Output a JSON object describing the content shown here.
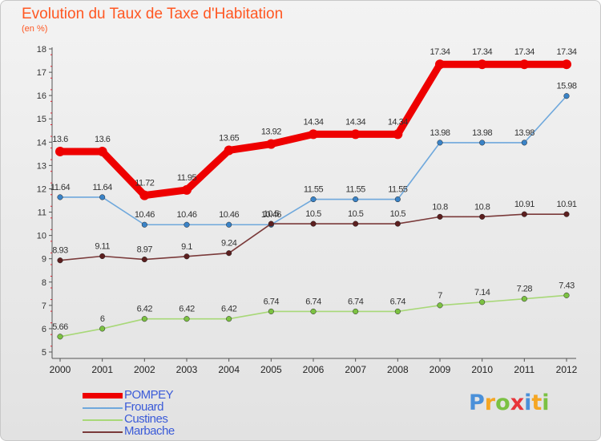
{
  "header": {
    "title": "Evolution du Taux de Taxe d'Habitation",
    "subtitle": "(en %)"
  },
  "logo": {
    "text": "Proxiti",
    "letters": [
      {
        "ch": "P",
        "color": "#4a90d9"
      },
      {
        "ch": "r",
        "color": "#f5a623"
      },
      {
        "ch": "o",
        "color": "#7bc143"
      },
      {
        "ch": "x",
        "color": "#e8343a"
      },
      {
        "ch": "i",
        "color": "#4a90d9"
      },
      {
        "ch": "t",
        "color": "#f5a623"
      },
      {
        "ch": "i",
        "color": "#7bc143"
      }
    ]
  },
  "chart_data": {
    "type": "line",
    "title": "Evolution du Taux de Taxe d'Habitation",
    "ylabel": "(en %)",
    "x": [
      2000,
      2001,
      2002,
      2003,
      2004,
      2005,
      2006,
      2007,
      2008,
      2009,
      2010,
      2011,
      2012
    ],
    "ylim": [
      5,
      18
    ],
    "yticks": [
      5,
      6,
      7,
      8,
      9,
      10,
      11,
      12,
      13,
      14,
      15,
      16,
      17,
      18
    ],
    "grid": false,
    "legend_position": "bottom-left",
    "series": [
      {
        "name": "POMPEY",
        "color": "#ee0000",
        "emphasis": true,
        "values": [
          13.6,
          13.6,
          11.72,
          11.95,
          13.65,
          13.92,
          14.34,
          14.34,
          14.34,
          17.34,
          17.34,
          17.34,
          17.34
        ],
        "labels": [
          "13.6",
          "13.6",
          "11.72",
          "11.95",
          "13.65",
          "13.92",
          "14.34",
          "14.34",
          "14.34",
          "17.34",
          "17.34",
          "17.34",
          "17.34"
        ]
      },
      {
        "name": "Frouard",
        "color": "#6fa8dc",
        "marker": "#3a83c7",
        "values": [
          11.64,
          11.64,
          10.46,
          10.46,
          10.46,
          10.46,
          11.55,
          11.55,
          11.55,
          13.98,
          13.98,
          13.98,
          15.98
        ],
        "labels": [
          "11.64",
          "11.64",
          "10.46",
          "10.46",
          "10.46",
          "10.46",
          "11.55",
          "11.55",
          "11.55",
          "13.98",
          "13.98",
          "13.98",
          "15.98"
        ]
      },
      {
        "name": "Custines",
        "color": "#a8d878",
        "marker": "#7cc242",
        "values": [
          5.66,
          6,
          6.42,
          6.42,
          6.42,
          6.74,
          6.74,
          6.74,
          6.74,
          7,
          7.14,
          7.28,
          7.43
        ],
        "labels": [
          "5.66",
          "6",
          "6.42",
          "6.42",
          "6.42",
          "6.74",
          "6.74",
          "6.74",
          "6.74",
          "7",
          "7.14",
          "7.28",
          "7.43"
        ]
      },
      {
        "name": "Marbache",
        "color": "#7a3a3a",
        "marker": "#5c1f1f",
        "values": [
          8.93,
          9.11,
          8.97,
          9.1,
          9.24,
          10.5,
          10.5,
          10.5,
          10.5,
          10.8,
          10.8,
          10.91,
          10.91
        ],
        "labels": [
          "8.93",
          "9.11",
          "8.97",
          "9.1",
          "9.24",
          "10.5",
          "10.5",
          "10.5",
          "10.5",
          "10.8",
          "10.8",
          "10.91",
          "10.91"
        ]
      }
    ]
  }
}
